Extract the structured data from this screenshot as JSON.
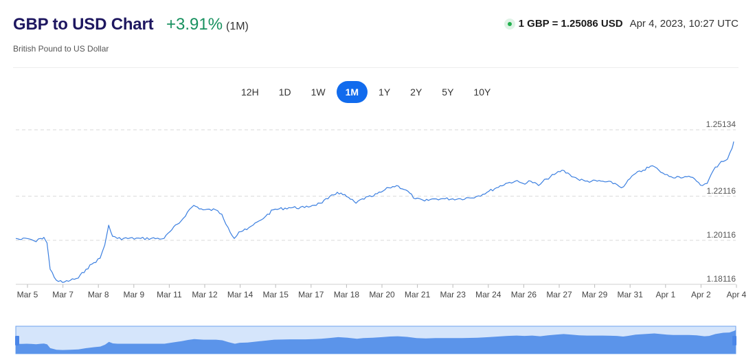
{
  "header": {
    "title": "GBP to USD Chart",
    "change": "+3.91%",
    "period": "(1M)",
    "subtitle": "British Pound to US Dollar",
    "rate": "1 GBP = 1.25086 USD",
    "timestamp": "Apr 4, 2023, 10:27 UTC"
  },
  "tabs": [
    {
      "label": "12H",
      "active": false
    },
    {
      "label": "1D",
      "active": false
    },
    {
      "label": "1W",
      "active": false
    },
    {
      "label": "1M",
      "active": true
    },
    {
      "label": "1Y",
      "active": false
    },
    {
      "label": "2Y",
      "active": false
    },
    {
      "label": "5Y",
      "active": false
    },
    {
      "label": "10Y",
      "active": false
    }
  ],
  "colors": {
    "line": "#3b7fe0",
    "navigator_fill": "#5b94ea",
    "navigator_bg": "#d5e5fb",
    "active_tab": "#116bed",
    "positive": "#18915f",
    "title": "#1e1760"
  },
  "chart_data": {
    "type": "line",
    "title": "GBP to USD Chart",
    "xlabel": "",
    "ylabel": "",
    "ylim": [
      1.18116,
      1.25134
    ],
    "y_ticks": [
      "1.25134",
      "1.22116",
      "1.20116",
      "1.18116"
    ],
    "x_ticks": [
      "Mar 5",
      "Mar 7",
      "Mar 8",
      "Mar 9",
      "Mar 11",
      "Mar 12",
      "Mar 14",
      "Mar 15",
      "Mar 17",
      "Mar 18",
      "Mar 20",
      "Mar 21",
      "Mar 23",
      "Mar 24",
      "Mar 26",
      "Mar 27",
      "Mar 29",
      "Mar 31",
      "Apr 1",
      "Apr 2",
      "Apr 4"
    ],
    "grid": true,
    "legend": "none",
    "series": [
      {
        "values": [
          [
            0.0,
            1.202
          ],
          [
            0.35,
            1.2015
          ],
          [
            0.7,
            1.202
          ],
          [
            1.0,
            1.2015
          ],
          [
            1.3,
            1.2005
          ],
          [
            1.6,
            1.202
          ],
          [
            1.8,
            1.2025
          ],
          [
            2.0,
            1.2
          ],
          [
            2.2,
            1.188
          ],
          [
            2.6,
            1.183
          ],
          [
            3.0,
            1.182
          ],
          [
            3.5,
            1.183
          ],
          [
            4.0,
            1.184
          ],
          [
            4.5,
            1.188
          ],
          [
            5.0,
            1.191
          ],
          [
            5.4,
            1.193
          ],
          [
            5.7,
            1.199
          ],
          [
            5.95,
            1.208
          ],
          [
            6.2,
            1.203
          ],
          [
            6.5,
            1.202
          ],
          [
            8.0,
            1.202
          ],
          [
            9.5,
            1.202
          ],
          [
            10.0,
            1.206
          ],
          [
            10.6,
            1.21
          ],
          [
            11.0,
            1.214
          ],
          [
            11.4,
            1.217
          ],
          [
            12.0,
            1.215
          ],
          [
            12.8,
            1.215
          ],
          [
            13.2,
            1.213
          ],
          [
            13.6,
            1.207
          ],
          [
            14.0,
            1.202
          ],
          [
            14.3,
            1.205
          ],
          [
            14.8,
            1.206
          ],
          [
            15.2,
            1.208
          ],
          [
            15.6,
            1.21
          ],
          [
            16.0,
            1.212
          ],
          [
            16.5,
            1.215
          ],
          [
            17.5,
            1.216
          ],
          [
            18.5,
            1.216
          ],
          [
            19.0,
            1.217
          ],
          [
            19.5,
            1.218
          ],
          [
            20.0,
            1.22
          ],
          [
            20.6,
            1.223
          ],
          [
            21.2,
            1.221
          ],
          [
            21.8,
            1.218
          ],
          [
            22.2,
            1.22
          ],
          [
            22.8,
            1.221
          ],
          [
            23.4,
            1.223
          ],
          [
            23.9,
            1.225
          ],
          [
            24.4,
            1.226
          ],
          [
            25.0,
            1.224
          ],
          [
            25.6,
            1.22
          ],
          [
            26.2,
            1.219
          ],
          [
            26.8,
            1.22
          ],
          [
            27.5,
            1.22
          ],
          [
            28.5,
            1.22
          ],
          [
            29.5,
            1.221
          ],
          [
            30.2,
            1.223
          ],
          [
            30.8,
            1.225
          ],
          [
            31.4,
            1.227
          ],
          [
            32.0,
            1.228
          ],
          [
            32.5,
            1.227
          ],
          [
            33.0,
            1.228
          ],
          [
            33.5,
            1.226
          ],
          [
            34.0,
            1.229
          ],
          [
            34.5,
            1.231
          ],
          [
            35.0,
            1.233
          ],
          [
            35.5,
            1.231
          ],
          [
            36.0,
            1.229
          ],
          [
            36.5,
            1.228
          ],
          [
            37.5,
            1.228
          ],
          [
            38.4,
            1.227
          ],
          [
            38.8,
            1.225
          ],
          [
            39.1,
            1.227
          ],
          [
            39.6,
            1.231
          ],
          [
            40.2,
            1.233
          ],
          [
            40.8,
            1.235
          ],
          [
            41.2,
            1.233
          ],
          [
            41.6,
            1.231
          ],
          [
            42.0,
            1.23
          ],
          [
            42.5,
            1.23
          ],
          [
            43.0,
            1.23
          ],
          [
            43.5,
            1.229
          ],
          [
            44.0,
            1.226
          ],
          [
            44.3,
            1.227
          ],
          [
            44.7,
            1.233
          ],
          [
            45.2,
            1.237
          ],
          [
            45.6,
            1.238
          ],
          [
            45.9,
            1.243
          ],
          [
            46.0,
            1.246
          ]
        ]
      }
    ]
  }
}
